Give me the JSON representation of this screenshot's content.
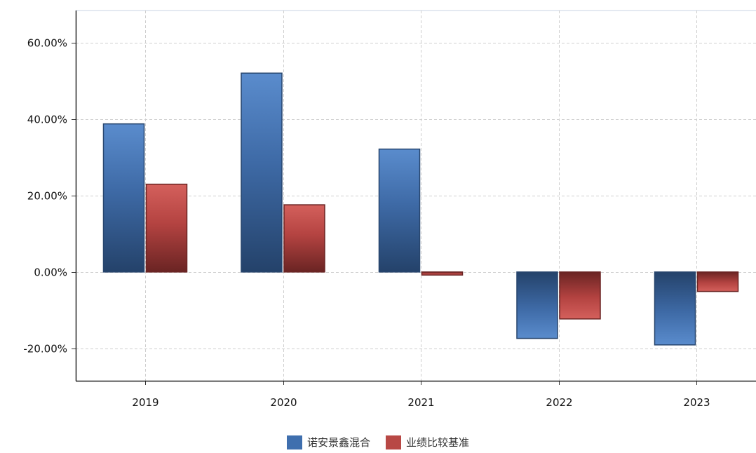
{
  "chart_data": {
    "type": "bar",
    "categories": [
      "2019",
      "2020",
      "2021",
      "2022",
      "2023"
    ],
    "series": [
      {
        "name": "诺安景鑫混合",
        "values": [
          38.8,
          52.1,
          32.2,
          -17.4,
          -19.1
        ],
        "color": "#3f6fae",
        "color_dark": "#27456d"
      },
      {
        "name": "业绩比较基准",
        "values": [
          23.0,
          17.6,
          -0.8,
          -12.3,
          -5.1
        ],
        "color": "#b84845",
        "color_dark": "#6a2423"
      }
    ],
    "ylim": [
      -28.5,
      68.5
    ],
    "yticks": [
      -20,
      0,
      20,
      40,
      60
    ],
    "ytick_labels": [
      "-20.00%",
      "0.00%",
      "20.00%",
      "40.00%",
      "60.00%"
    ],
    "grid": true,
    "legend_position": "bottom-center"
  }
}
